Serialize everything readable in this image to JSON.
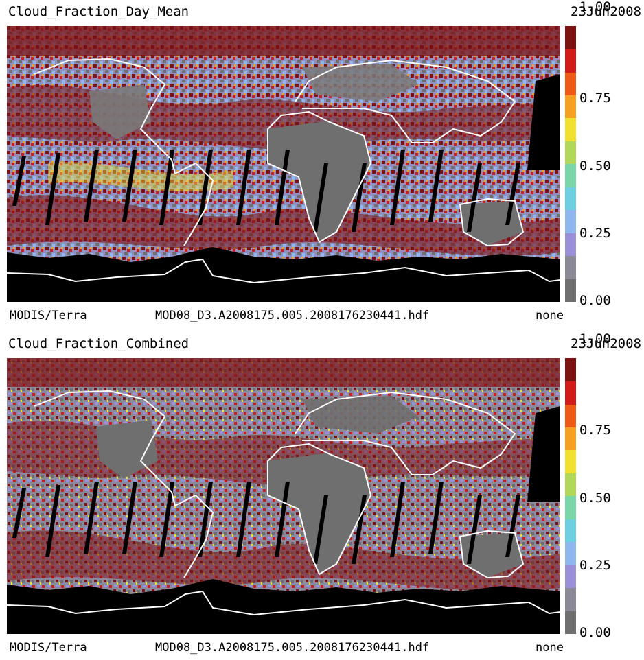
{
  "panels": [
    {
      "title": "Cloud_Fraction_Day_Mean",
      "date": "23Jun2008",
      "sensor": "MODIS/Terra",
      "file": "MOD08_D3.A2008175.005.2008176230441.hdf",
      "note": "none",
      "colorbar_ticks": [
        "1.00",
        "0.75",
        "0.50",
        "0.25",
        "0.00"
      ]
    },
    {
      "title": "Cloud_Fraction_Combined",
      "date": "23Jun2008",
      "sensor": "MODIS/Terra",
      "file": "MOD08_D3.A2008175.005.2008176230441.hdf",
      "note": "none",
      "colorbar_ticks": [
        "1.00",
        "0.75",
        "0.50",
        "0.25",
        "0.00"
      ]
    }
  ],
  "colorbar": {
    "min": 0.0,
    "max": 1.0,
    "colors": [
      "#6f6f6f",
      "#8a8a96",
      "#9a90d8",
      "#8fb7ee",
      "#6cd0e0",
      "#7ad6a8",
      "#b2d85a",
      "#f0e030",
      "#f5a020",
      "#ee5a14",
      "#d21c1c",
      "#7e1212"
    ]
  },
  "colors": {
    "no_data": "#000000",
    "coastline": "#ffffff",
    "land_clear": "#6f6f6f"
  }
}
